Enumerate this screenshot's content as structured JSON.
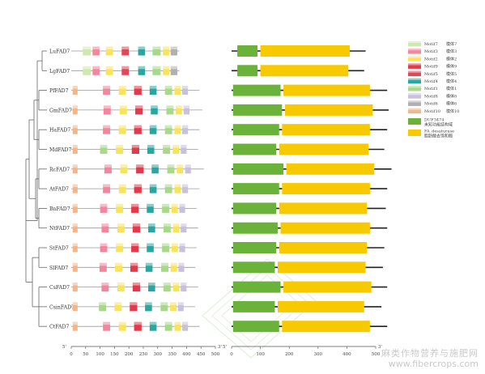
{
  "genes": [
    "LuFAD7",
    "LgFAD7",
    "PfFAD7",
    "GmFAD7",
    "HaFAD7",
    "MdFAD7",
    "RcFAD7",
    "AtFAD7",
    "BnFAD7",
    "NtFAD7",
    "StFAD7",
    "SlFAD7",
    "CsFAD7",
    "CsinFAD7",
    "CtFAD7"
  ],
  "motifs_panel": {
    "axis": {
      "start_label": "5'",
      "end_label": "3'",
      "ticks": [
        0,
        50,
        100,
        150,
        200,
        250,
        300,
        350,
        400,
        450,
        500
      ],
      "max": 500
    },
    "motif_colors": {
      "Motif10": "#f4b58a",
      "Motif3": "#f2869c",
      "Motif2": "#f8e45c",
      "Motif9": "#e23a4a",
      "Motif4": "#2aa6a0",
      "Motif1": "#a8d88a",
      "Motif8": "#c8c0dc",
      "Motif7": "#cfe7b0",
      "Motif5": "#e04858",
      "Motif6": "#b0b0b0"
    },
    "tracks": [
      {
        "length": 375,
        "motifs": [
          [
            "Motif7",
            40,
            68
          ],
          [
            "Motif3",
            74,
            98
          ],
          [
            "Motif2",
            120,
            145
          ],
          [
            "Motif5",
            175,
            200
          ],
          [
            "Motif4",
            232,
            256
          ],
          [
            "Motif1",
            282,
            310
          ],
          [
            "Motif2",
            318,
            340
          ],
          [
            "Motif6",
            345,
            368
          ]
        ]
      },
      {
        "length": 375,
        "motifs": [
          [
            "Motif7",
            40,
            68
          ],
          [
            "Motif3",
            74,
            98
          ],
          [
            "Motif2",
            120,
            145
          ],
          [
            "Motif5",
            175,
            200
          ],
          [
            "Motif4",
            232,
            256
          ],
          [
            "Motif1",
            282,
            310
          ],
          [
            "Motif2",
            318,
            340
          ],
          [
            "Motif6",
            345,
            368
          ]
        ]
      },
      {
        "length": 445,
        "motifs": [
          [
            "Motif10",
            5,
            22
          ],
          [
            "Motif3",
            110,
            135
          ],
          [
            "Motif2",
            165,
            190
          ],
          [
            "Motif9",
            218,
            244
          ],
          [
            "Motif4",
            272,
            296
          ],
          [
            "Motif1",
            325,
            350
          ],
          [
            "Motif2",
            358,
            380
          ],
          [
            "Motif8",
            385,
            405
          ]
        ]
      },
      {
        "length": 455,
        "motifs": [
          [
            "Motif10",
            5,
            22
          ],
          [
            "Motif3",
            112,
            137
          ],
          [
            "Motif2",
            168,
            193
          ],
          [
            "Motif9",
            222,
            248
          ],
          [
            "Motif4",
            276,
            300
          ],
          [
            "Motif1",
            330,
            355
          ],
          [
            "Motif2",
            362,
            384
          ],
          [
            "Motif8",
            390,
            410
          ]
        ]
      },
      {
        "length": 445,
        "motifs": [
          [
            "Motif10",
            5,
            22
          ],
          [
            "Motif3",
            110,
            135
          ],
          [
            "Motif2",
            165,
            190
          ],
          [
            "Motif9",
            218,
            244
          ],
          [
            "Motif4",
            272,
            296
          ],
          [
            "Motif1",
            325,
            350
          ],
          [
            "Motif2",
            358,
            380
          ],
          [
            "Motif8",
            385,
            405
          ]
        ]
      },
      {
        "length": 440,
        "motifs": [
          [
            "Motif10",
            5,
            22
          ],
          [
            "Motif1",
            100,
            125
          ],
          [
            "Motif2",
            155,
            180
          ],
          [
            "Motif9",
            210,
            236
          ],
          [
            "Motif4",
            264,
            288
          ],
          [
            "Motif1",
            318,
            343
          ],
          [
            "Motif2",
            352,
            374
          ],
          [
            "Motif8",
            380,
            400
          ]
        ]
      },
      {
        "length": 460,
        "motifs": [
          [
            "Motif10",
            5,
            22
          ],
          [
            "Motif3",
            115,
            140
          ],
          [
            "Motif2",
            170,
            195
          ],
          [
            "Motif9",
            225,
            251
          ],
          [
            "Motif4",
            279,
            303
          ],
          [
            "Motif1",
            333,
            358
          ],
          [
            "Motif2",
            366,
            388
          ],
          [
            "Motif8",
            395,
            415
          ]
        ]
      },
      {
        "length": 445,
        "motifs": [
          [
            "Motif10",
            5,
            22
          ],
          [
            "Motif3",
            110,
            135
          ],
          [
            "Motif2",
            165,
            190
          ],
          [
            "Motif9",
            218,
            244
          ],
          [
            "Motif4",
            272,
            296
          ],
          [
            "Motif1",
            325,
            350
          ],
          [
            "Motif2",
            358,
            380
          ],
          [
            "Motif8",
            385,
            405
          ]
        ]
      },
      {
        "length": 435,
        "motifs": [
          [
            "Motif10",
            5,
            22
          ],
          [
            "Motif3",
            100,
            125
          ],
          [
            "Motif2",
            155,
            180
          ],
          [
            "Motif9",
            208,
            234
          ],
          [
            "Motif4",
            262,
            286
          ],
          [
            "Motif1",
            315,
            340
          ],
          [
            "Motif2",
            348,
            370
          ],
          [
            "Motif8",
            375,
            395
          ]
        ]
      },
      {
        "length": 440,
        "motifs": [
          [
            "Motif10",
            5,
            22
          ],
          [
            "Motif3",
            105,
            130
          ],
          [
            "Motif2",
            160,
            185
          ],
          [
            "Motif9",
            213,
            239
          ],
          [
            "Motif4",
            267,
            291
          ],
          [
            "Motif1",
            320,
            345
          ],
          [
            "Motif2",
            353,
            375
          ],
          [
            "Motif8",
            380,
            400
          ]
        ]
      },
      {
        "length": 435,
        "motifs": [
          [
            "Motif10",
            5,
            22
          ],
          [
            "Motif3",
            100,
            125
          ],
          [
            "Motif2",
            155,
            180
          ],
          [
            "Motif9",
            208,
            234
          ],
          [
            "Motif4",
            262,
            286
          ],
          [
            "Motif1",
            315,
            340
          ],
          [
            "Motif2",
            348,
            370
          ],
          [
            "Motif8",
            375,
            395
          ]
        ]
      },
      {
        "length": 430,
        "motifs": [
          [
            "Motif10",
            5,
            22
          ],
          [
            "Motif3",
            98,
            123
          ],
          [
            "Motif2",
            152,
            177
          ],
          [
            "Motif9",
            205,
            231
          ],
          [
            "Motif4",
            258,
            282
          ],
          [
            "Motif1",
            312,
            337
          ],
          [
            "Motif2",
            345,
            367
          ],
          [
            "Motif8",
            372,
            392
          ]
        ]
      },
      {
        "length": 440,
        "motifs": [
          [
            "Motif10",
            5,
            22
          ],
          [
            "Motif3",
            105,
            130
          ],
          [
            "Motif2",
            160,
            185
          ],
          [
            "Motif9",
            213,
            239
          ],
          [
            "Motif4",
            267,
            291
          ],
          [
            "Motif1",
            320,
            345
          ],
          [
            "Motif2",
            353,
            375
          ],
          [
            "Motif8",
            380,
            400
          ]
        ]
      },
      {
        "length": 430,
        "motifs": [
          [
            "Motif10",
            5,
            22
          ],
          [
            "Motif1",
            96,
            121
          ],
          [
            "Motif2",
            150,
            175
          ],
          [
            "Motif9",
            203,
            229
          ],
          [
            "Motif4",
            256,
            280
          ],
          [
            "Motif1",
            310,
            335
          ],
          [
            "Motif2",
            343,
            365
          ],
          [
            "Motif8",
            370,
            390
          ]
        ]
      },
      {
        "length": 445,
        "motifs": [
          [
            "Motif10",
            5,
            22
          ],
          [
            "Motif3",
            110,
            135
          ],
          [
            "Motif2",
            165,
            190
          ],
          [
            "Motif9",
            218,
            244
          ],
          [
            "Motif4",
            272,
            296
          ],
          [
            "Motif1",
            325,
            350
          ],
          [
            "Motif2",
            358,
            380
          ],
          [
            "Motif8",
            385,
            405
          ]
        ]
      }
    ]
  },
  "domains_panel": {
    "axis": {
      "start_label": "5'",
      "end_label": "3'",
      "ticks": [
        0,
        100,
        200,
        300,
        400,
        500
      ],
      "max": 500
    },
    "domain_colors": {
      "DUF3474": "#6bb23a",
      "FA_desaturase": "#f7c900"
    },
    "tracks": [
      {
        "length": 465,
        "domains": [
          [
            "DUF3474",
            20,
            90
          ],
          [
            "FA_desaturase",
            100,
            410
          ]
        ]
      },
      {
        "length": 460,
        "domains": [
          [
            "DUF3474",
            20,
            90
          ],
          [
            "FA_desaturase",
            100,
            405
          ]
        ]
      },
      {
        "length": 540,
        "domains": [
          [
            "DUF3474",
            5,
            170
          ],
          [
            "FA_desaturase",
            180,
            480
          ]
        ]
      },
      {
        "length": 545,
        "domains": [
          [
            "DUF3474",
            5,
            175
          ],
          [
            "FA_desaturase",
            185,
            490
          ]
        ]
      },
      {
        "length": 540,
        "domains": [
          [
            "DUF3474",
            5,
            165
          ],
          [
            "FA_desaturase",
            175,
            480
          ]
        ]
      },
      {
        "length": 530,
        "domains": [
          [
            "DUF3474",
            5,
            155
          ],
          [
            "FA_desaturase",
            165,
            475
          ]
        ]
      },
      {
        "length": 555,
        "domains": [
          [
            "DUF3474",
            5,
            180
          ],
          [
            "FA_desaturase",
            190,
            495
          ]
        ]
      },
      {
        "length": 540,
        "domains": [
          [
            "DUF3474",
            5,
            165
          ],
          [
            "FA_desaturase",
            175,
            480
          ]
        ]
      },
      {
        "length": 535,
        "domains": [
          [
            "DUF3474",
            5,
            155
          ],
          [
            "FA_desaturase",
            165,
            470
          ]
        ]
      },
      {
        "length": 540,
        "domains": [
          [
            "DUF3474",
            5,
            160
          ],
          [
            "FA_desaturase",
            170,
            480
          ]
        ]
      },
      {
        "length": 530,
        "domains": [
          [
            "DUF3474",
            5,
            155
          ],
          [
            "FA_desaturase",
            165,
            470
          ]
        ]
      },
      {
        "length": 525,
        "domains": [
          [
            "DUF3474",
            5,
            150
          ],
          [
            "FA_desaturase",
            160,
            465
          ]
        ]
      },
      {
        "length": 540,
        "domains": [
          [
            "DUF3474",
            5,
            170
          ],
          [
            "FA_desaturase",
            180,
            485
          ]
        ]
      },
      {
        "length": 520,
        "domains": [
          [
            "DUF3474",
            5,
            150
          ],
          [
            "FA_desaturase",
            160,
            460
          ]
        ]
      },
      {
        "length": 540,
        "domains": [
          [
            "DUF3474",
            5,
            165
          ],
          [
            "FA_desaturase",
            175,
            480
          ]
        ]
      }
    ]
  },
  "legend": {
    "motifs": [
      {
        "key": "Motif7",
        "label": "Motif7",
        "zh": "模体7"
      },
      {
        "key": "Motif3",
        "label": "Motif3",
        "zh": "模体3"
      },
      {
        "key": "Motif2",
        "label": "Motif2",
        "zh": "模体2"
      },
      {
        "key": "Motif9",
        "label": "Motif9",
        "zh": "模体9"
      },
      {
        "key": "Motif5",
        "label": "Motif5",
        "zh": "模体5"
      },
      {
        "key": "Motif4",
        "label": "Motif4",
        "zh": "模体4"
      },
      {
        "key": "Motif1",
        "label": "Motif1",
        "zh": "模体1"
      },
      {
        "key": "Motif8",
        "label": "Motif8",
        "zh": "模体8"
      },
      {
        "key": "Motif6",
        "label": "Motif6",
        "zh": "模体6"
      },
      {
        "key": "Motif10",
        "label": "Motif10",
        "zh": "模体10"
      }
    ],
    "domains": [
      {
        "key": "DUF3474",
        "label": "DUF3474",
        "zh": "未知功能结构域"
      },
      {
        "key": "FA_desaturase",
        "label": "FA_desaturase",
        "zh": "脂肪酸去饱和酶"
      }
    ]
  },
  "watermark": {
    "text": "麻类作物营养与施肥网",
    "url": "www.fibercrops.com"
  }
}
